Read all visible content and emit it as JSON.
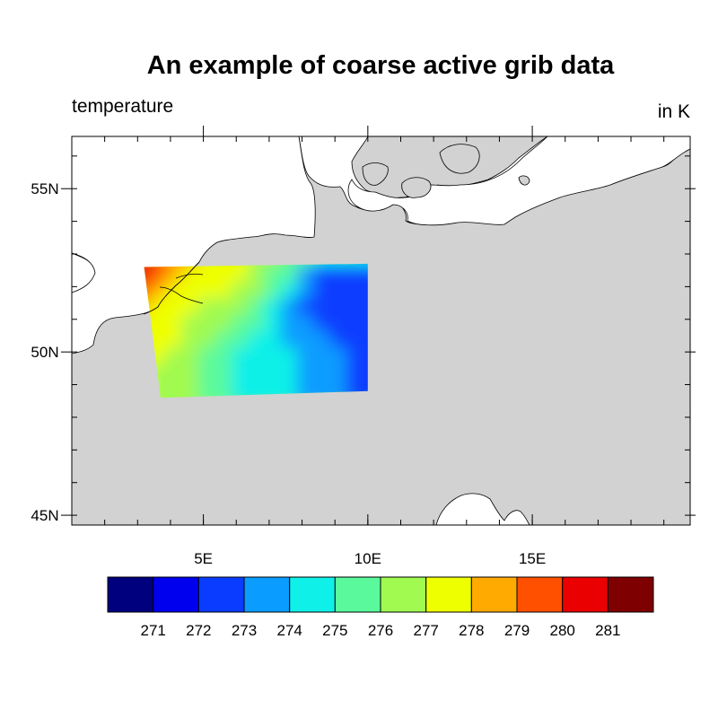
{
  "title": "An example of coarse active grib data",
  "left_string": "temperature",
  "right_string": "in K",
  "colors": {
    "land": "#d2d2d2",
    "ocean": "#ffffff",
    "outline": "#000000",
    "palette": [
      "#00007f",
      "#0000ef",
      "#0a3cff",
      "#0a9cff",
      "#0ef0e8",
      "#5afa9c",
      "#a0fa50",
      "#eeff00",
      "#ffaa00",
      "#ff5000",
      "#ea0000",
      "#7f0000"
    ]
  },
  "chart_data": {
    "type": "heatmap",
    "projection": "cylindrical-equidistant",
    "variable": "temperature",
    "units": "K",
    "lon_range": [
      1,
      19.8
    ],
    "lat_range": [
      44.7,
      56.6
    ],
    "x_major_ticks": [
      {
        "value": 5,
        "label": "5E"
      },
      {
        "value": 10,
        "label": "10E"
      },
      {
        "value": 15,
        "label": "15E"
      }
    ],
    "y_major_ticks": [
      {
        "value": 45,
        "label": "45N"
      },
      {
        "value": 50,
        "label": "50N"
      },
      {
        "value": 55,
        "label": "55N"
      }
    ],
    "contour_levels": [
      271,
      272,
      273,
      274,
      275,
      276,
      277,
      278,
      279,
      280,
      281
    ],
    "data_domain": {
      "corners": [
        [
          3.2,
          52.6
        ],
        [
          10,
          52.7
        ],
        [
          10,
          48.8
        ],
        [
          3.7,
          48.6
        ]
      ]
    },
    "grid": {
      "lon": [
        3.5,
        4.0,
        4.5,
        5.0,
        5.5,
        6.0,
        6.5,
        7.0,
        7.5,
        8.0,
        8.5,
        9.0,
        9.5,
        10.0
      ],
      "lat": [
        52.5,
        52.0,
        51.5,
        51.0,
        50.5,
        50.0,
        49.5,
        49.0
      ],
      "values": [
        [
          280.5,
          279.3,
          278.6,
          278.0,
          277.6,
          277.3,
          277.2,
          276.8,
          276.0,
          275.5,
          275.0,
          274.8,
          274.5,
          274.2
        ],
        [
          280.2,
          279.2,
          278.1,
          277.6,
          277.5,
          277.3,
          277.0,
          276.5,
          275.8,
          275.0,
          273.6,
          272.9,
          272.4,
          272.3
        ],
        [
          279.8,
          278.9,
          277.6,
          277.3,
          277.1,
          277.0,
          276.6,
          276.1,
          275.5,
          274.3,
          273.2,
          272.6,
          272.3,
          272.1
        ],
        [
          278.6,
          277.8,
          277.4,
          277.0,
          276.8,
          276.7,
          276.4,
          275.8,
          274.8,
          273.7,
          272.9,
          272.6,
          272.2,
          272.4
        ],
        [
          277.8,
          277.5,
          277.2,
          276.8,
          276.5,
          276.3,
          275.9,
          275.2,
          274.3,
          273.6,
          273.0,
          272.8,
          272.7,
          272.4
        ],
        [
          277.6,
          277.4,
          277.0,
          276.7,
          276.2,
          275.6,
          275.2,
          274.8,
          274.2,
          273.8,
          273.4,
          273.1,
          272.9,
          272.5
        ],
        [
          277.4,
          277.2,
          276.9,
          276.5,
          275.9,
          275.0,
          274.6,
          274.4,
          274.2,
          274.0,
          273.6,
          273.2,
          273.0,
          272.8
        ],
        [
          277.0,
          276.9,
          276.6,
          276.1,
          275.6,
          275.1,
          274.9,
          274.6,
          274.4,
          274.1,
          273.7,
          273.4,
          273.1,
          272.8
        ]
      ]
    },
    "colorbar": {
      "orientation": "horizontal",
      "labels": [
        "271",
        "272",
        "273",
        "274",
        "275",
        "276",
        "277",
        "278",
        "279",
        "280",
        "281"
      ]
    }
  }
}
